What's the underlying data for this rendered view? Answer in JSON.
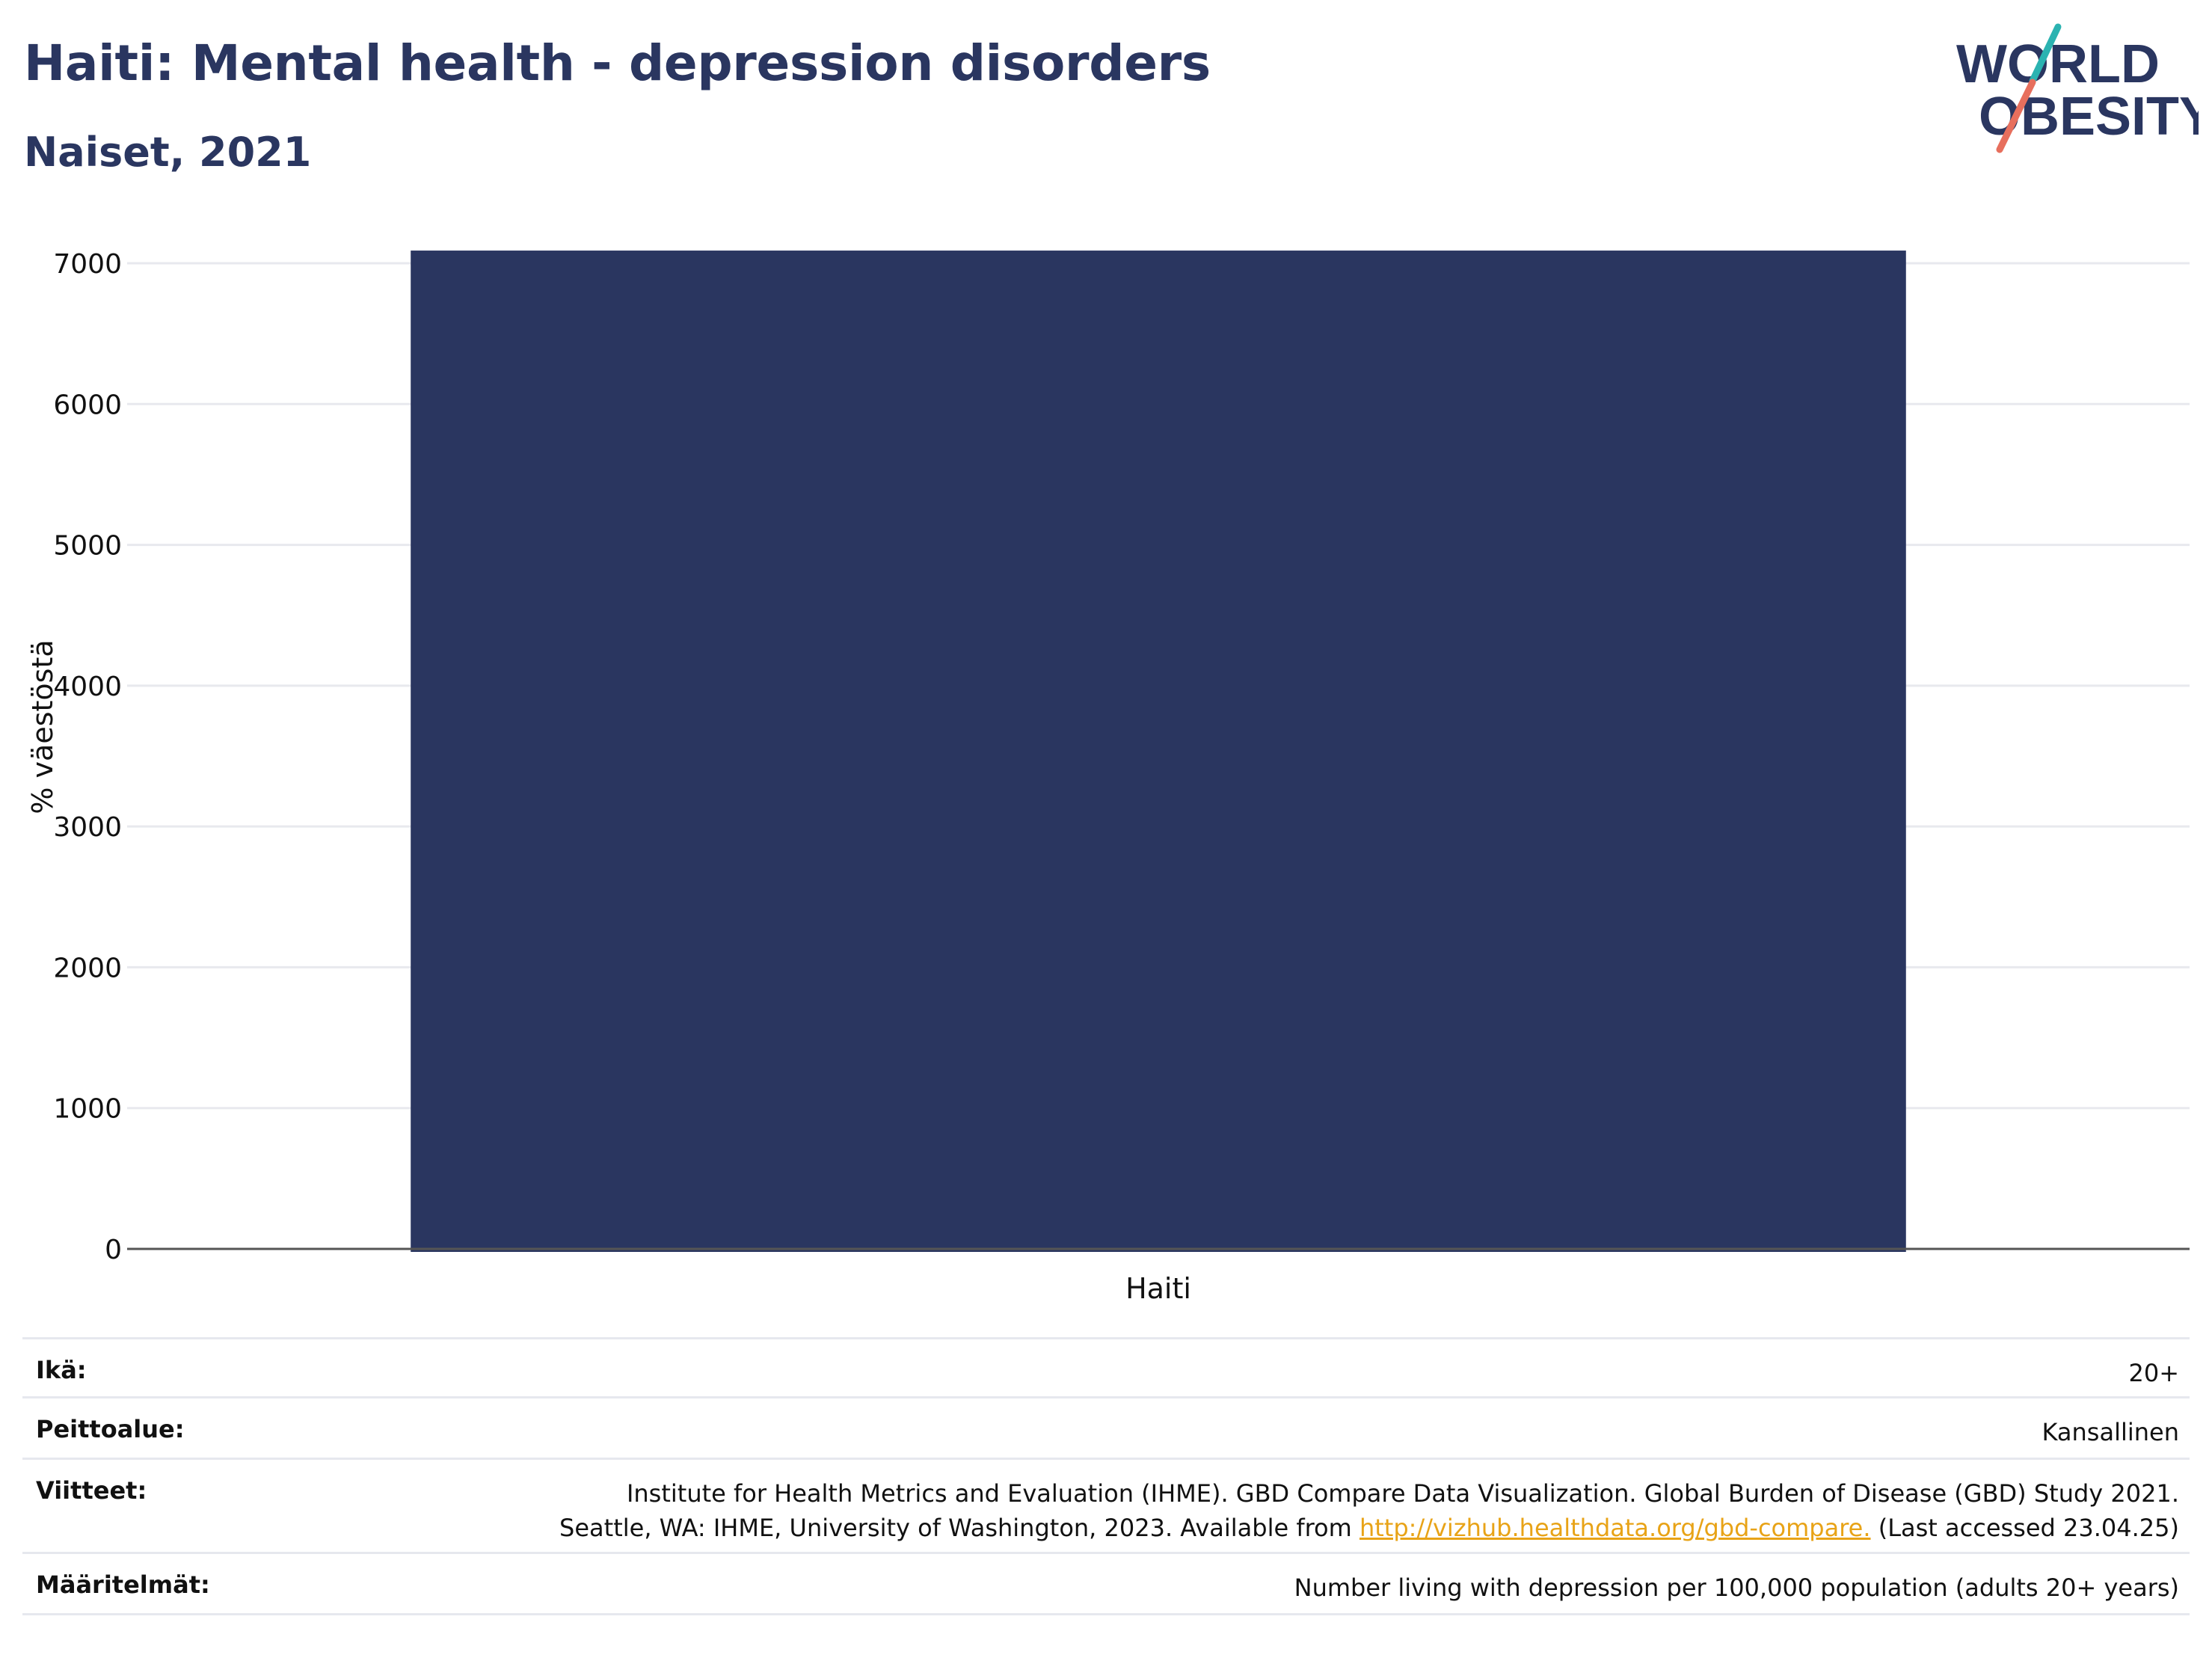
{
  "header": {
    "title": "Haiti: Mental health - depression disorders",
    "subtitle": "Naiset, 2021"
  },
  "logo": {
    "line1": "WORLD",
    "line2": "OBESITY",
    "colors": {
      "text": "#2a3660",
      "slash_top": "#2bb3b1",
      "slash_bottom": "#e76f5d"
    }
  },
  "chart_data": {
    "type": "bar",
    "categories": [
      "Haiti"
    ],
    "values": [
      7090
    ],
    "title": "",
    "xlabel": "",
    "ylabel": "% väestöstä",
    "ylim": [
      0,
      7000
    ],
    "yticks": [
      0,
      1000,
      2000,
      3000,
      4000,
      5000,
      6000,
      7000
    ],
    "grid": true,
    "legend": "none",
    "colors": {
      "bar": "#2a3660",
      "grid": "#e8e9ee",
      "axis": "#555555"
    }
  },
  "meta": {
    "age": {
      "label": "Ikä:",
      "value": "20+"
    },
    "coverage": {
      "label": "Peittoalue:",
      "value": "Kansallinen"
    },
    "references": {
      "label": "Viitteet:",
      "line1": "Institute for Health Metrics and Evaluation (IHME). GBD Compare Data Visualization. Global Burden of Disease (GBD) Study 2021.",
      "line2_pre": "Seattle, WA: IHME, University of Washington, 2023. Available from ",
      "link": "http://vizhub.healthdata.org/gbd-compare.",
      "line2_post": " (Last accessed 23.04.25)"
    },
    "definitions": {
      "label": "Määritelmät:",
      "value": "Number living with depression per 100,000 population (adults 20+ years)"
    }
  }
}
